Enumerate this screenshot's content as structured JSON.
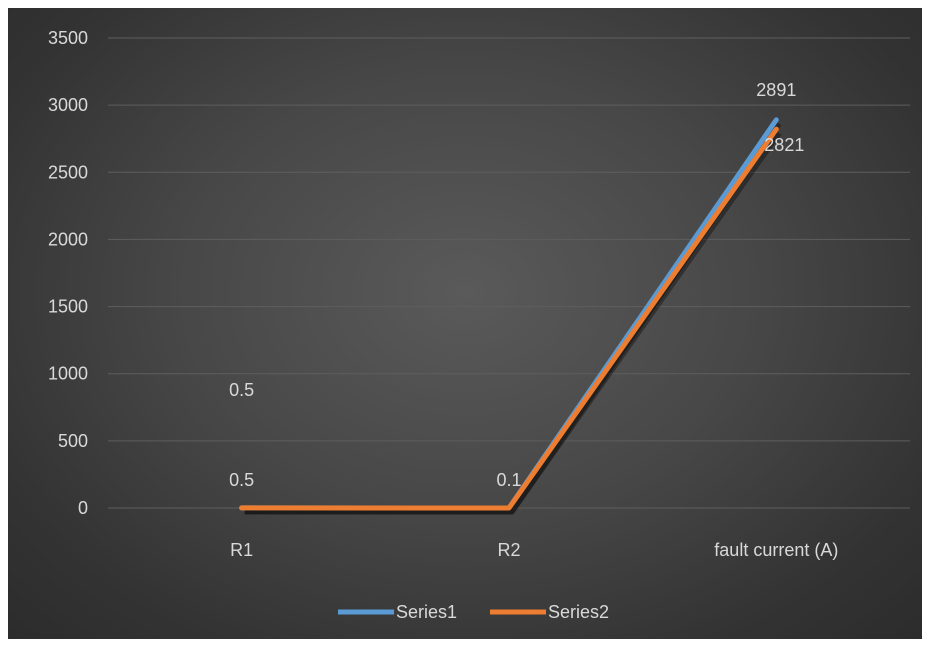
{
  "chart_data": {
    "type": "line",
    "title": "",
    "xlabel": "",
    "ylabel": "",
    "categories": [
      "R1",
      "R2",
      "fault current (A)"
    ],
    "series": [
      {
        "name": "Series1",
        "color": "#5b9bd5",
        "values": [
          0.5,
          0.1,
          2891
        ],
        "labels": [
          "0.5",
          "",
          "2891"
        ]
      },
      {
        "name": "Series2",
        "color": "#ed7d31",
        "values": [
          0.5,
          0.1,
          2821
        ],
        "labels": [
          "0.5",
          "0.1",
          "2821"
        ]
      }
    ],
    "ylim": [
      0,
      3500
    ],
    "yticks": [
      0,
      500,
      1000,
      1500,
      2000,
      2500,
      3000,
      3500
    ],
    "grid": true,
    "legend": "bottom",
    "background": "#474747",
    "gridline_color": "#5e5e5e",
    "text_color": "#d9d9d9"
  }
}
